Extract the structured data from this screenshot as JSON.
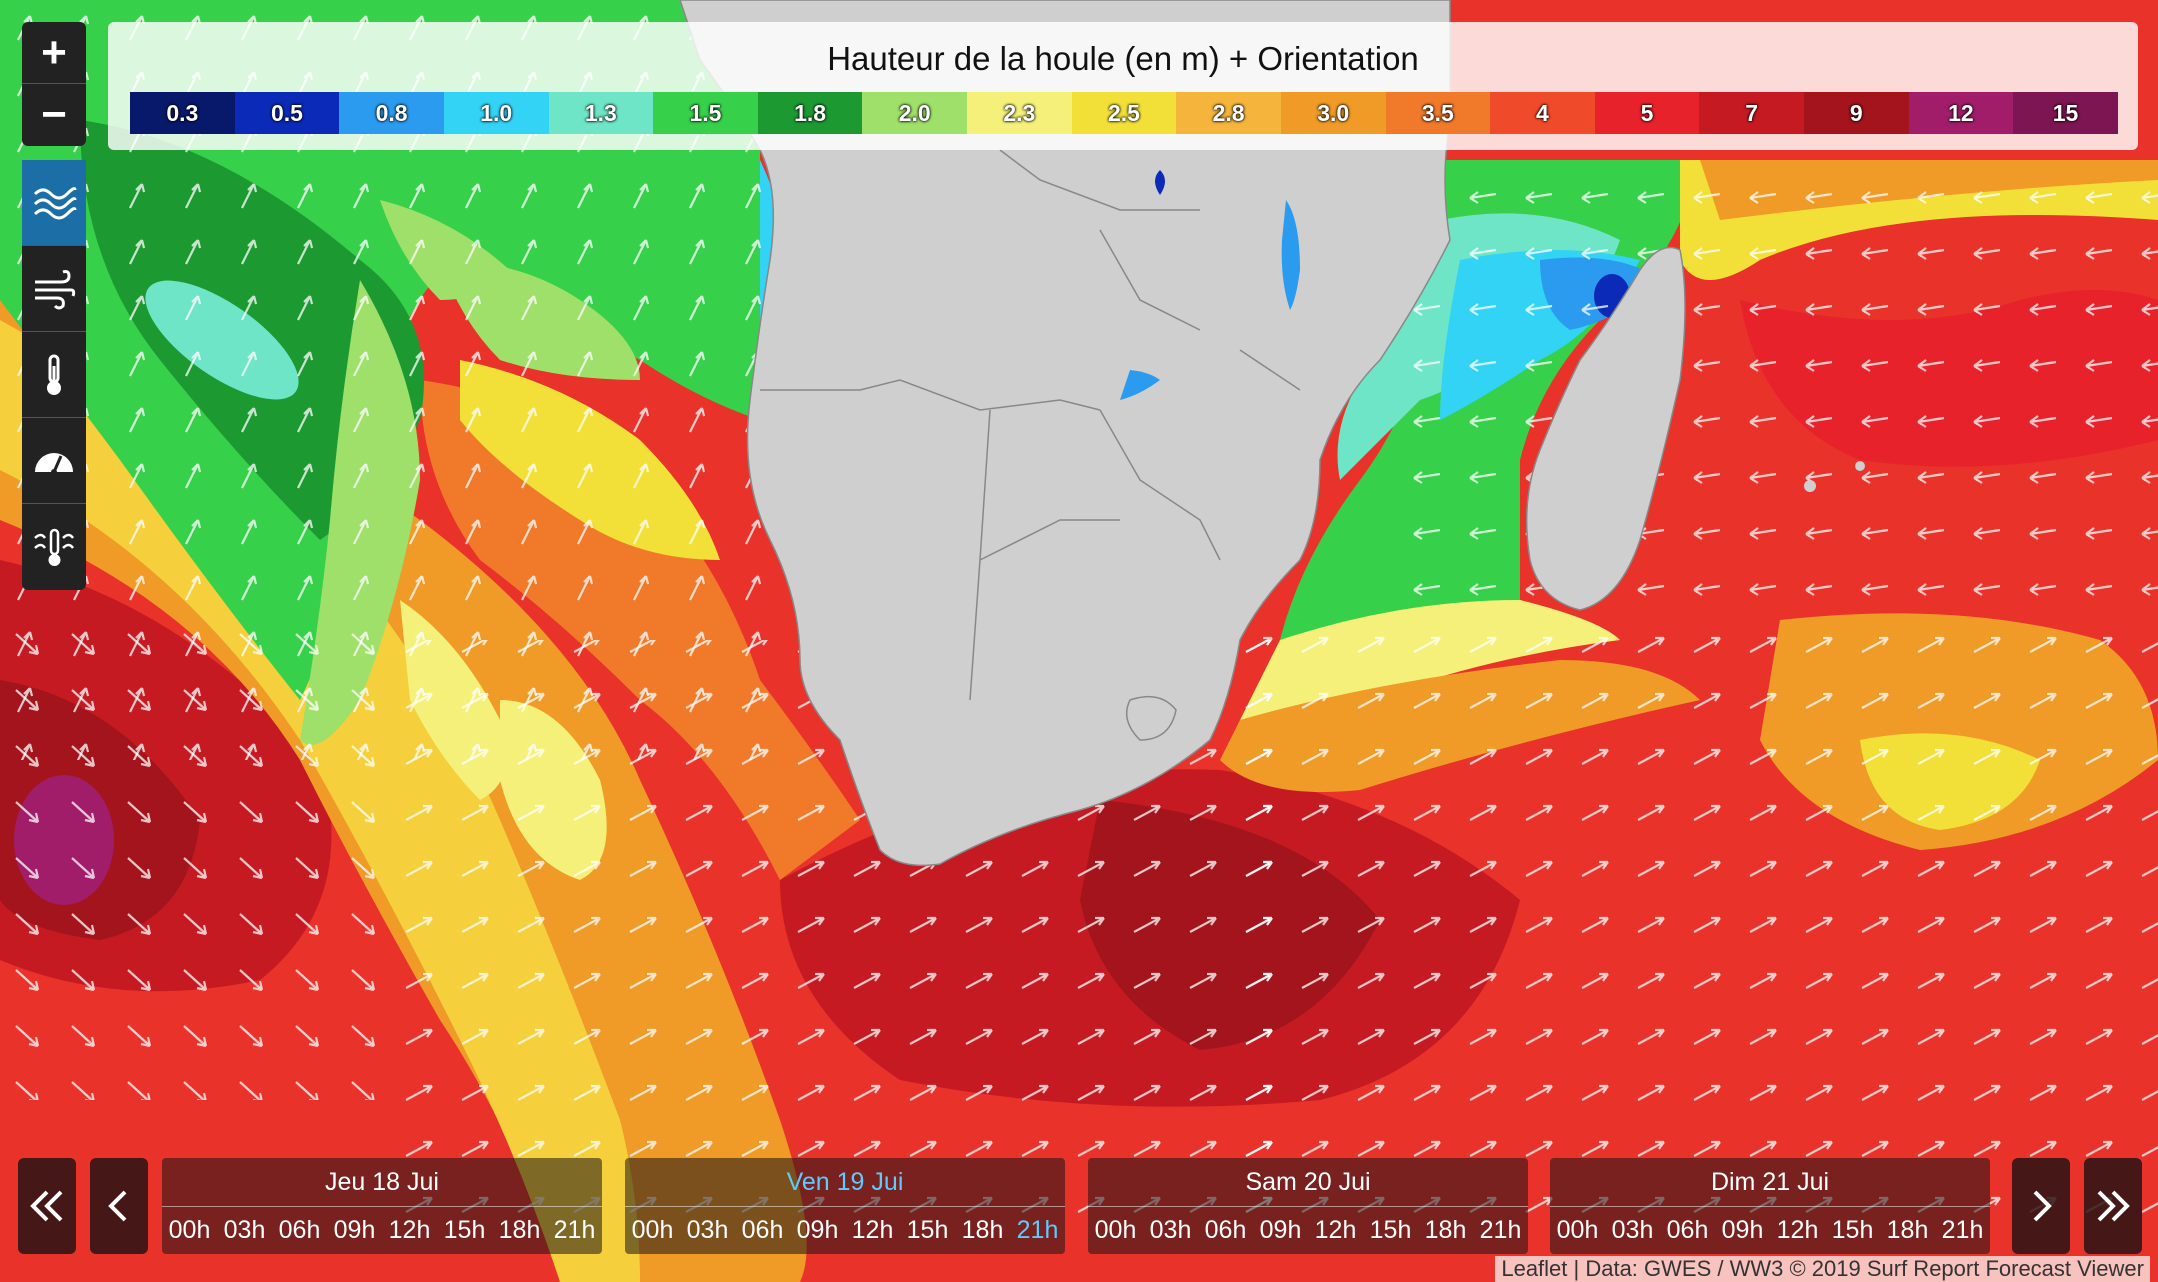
{
  "legend": {
    "title": "Hauteur de la houle (en m) + Orientation",
    "entries": [
      {
        "label": "0.3",
        "color": "#08196b"
      },
      {
        "label": "0.5",
        "color": "#0b2ab8"
      },
      {
        "label": "0.8",
        "color": "#2b9bef"
      },
      {
        "label": "1.0",
        "color": "#33d3f5"
      },
      {
        "label": "1.3",
        "color": "#6ee5c6"
      },
      {
        "label": "1.5",
        "color": "#37d04a"
      },
      {
        "label": "1.8",
        "color": "#1d9932"
      },
      {
        "label": "2.0",
        "color": "#9ee069"
      },
      {
        "label": "2.3",
        "color": "#f5f07a"
      },
      {
        "label": "2.5",
        "color": "#f2e038"
      },
      {
        "label": "2.8",
        "color": "#f5b43c"
      },
      {
        "label": "3.0",
        "color": "#f09a27"
      },
      {
        "label": "3.5",
        "color": "#f07a2a"
      },
      {
        "label": "4",
        "color": "#ef4a2a"
      },
      {
        "label": "5",
        "color": "#e8222a"
      },
      {
        "label": "7",
        "color": "#c51a22"
      },
      {
        "label": "9",
        "color": "#a3141c"
      },
      {
        "label": "12",
        "color": "#a11d6a"
      },
      {
        "label": "15",
        "color": "#7d1552"
      }
    ]
  },
  "zoom": {
    "in_label": "+",
    "out_label": "−"
  },
  "layers": [
    {
      "name": "swell-icon"
    },
    {
      "name": "wind-icon"
    },
    {
      "name": "temperature-icon"
    },
    {
      "name": "pressure-gauge-icon"
    },
    {
      "name": "water-temperature-icon"
    }
  ],
  "timeline": {
    "days": [
      {
        "label": "Jeu 18 Jui",
        "hours": [
          "00h",
          "03h",
          "06h",
          "09h",
          "12h",
          "15h",
          "18h",
          "21h"
        ],
        "active": false,
        "active_hour": null
      },
      {
        "label": "Ven 19 Jui",
        "hours": [
          "00h",
          "03h",
          "06h",
          "09h",
          "12h",
          "15h",
          "18h",
          "21h"
        ],
        "active": true,
        "active_hour": "21h"
      },
      {
        "label": "Sam 20 Jui",
        "hours": [
          "00h",
          "03h",
          "06h",
          "09h",
          "12h",
          "15h",
          "18h",
          "21h"
        ],
        "active": false,
        "active_hour": null
      },
      {
        "label": "Dim 21 Jui",
        "hours": [
          "00h",
          "03h",
          "06h",
          "09h",
          "12h",
          "15h",
          "18h",
          "21h"
        ],
        "active": false,
        "active_hour": null
      }
    ]
  },
  "attribution": "Leaflet | Data: GWES / WW3 © 2019 Surf Report Forecast Viewer",
  "colors": {
    "land": "#cfcfcf",
    "active": "#5ecbff"
  }
}
